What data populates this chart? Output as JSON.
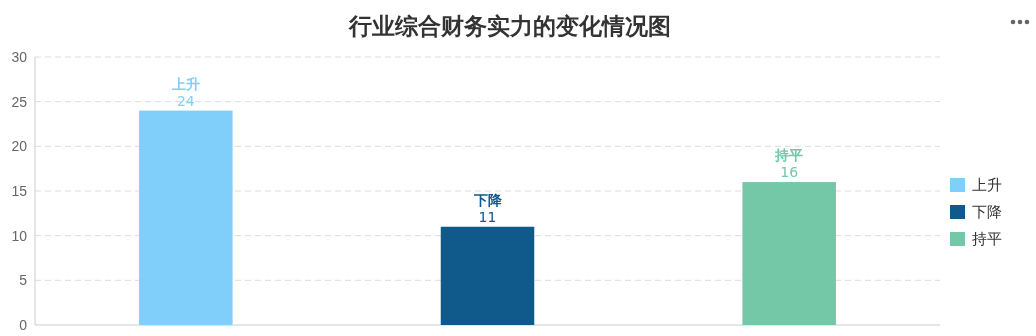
{
  "chart_data": {
    "type": "bar",
    "title": "行业综合财务实力的变化情况图",
    "categories": [
      null
    ],
    "series": [
      {
        "name": "上升",
        "color": "#80cffa",
        "values": [
          24
        ]
      },
      {
        "name": "下降",
        "color": "#0f5a8a",
        "values": [
          11
        ]
      },
      {
        "name": "持平",
        "color": "#74c8a8",
        "values": [
          16
        ]
      }
    ],
    "ylim": [
      0,
      30
    ],
    "yticks": [
      0,
      5,
      10,
      15,
      20,
      25,
      30
    ],
    "grid": "y",
    "legend": "right",
    "data_labels": true
  }
}
